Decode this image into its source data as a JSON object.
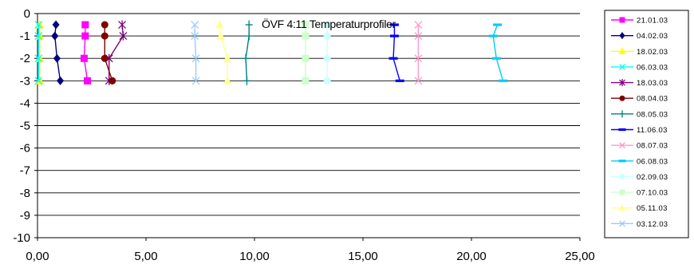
{
  "chart_data": {
    "type": "line",
    "title": "ÖVF 4:11 Temperaturprofiler",
    "xlabel": "",
    "ylabel": "",
    "xlim": [
      0,
      25
    ],
    "ylim": [
      -10,
      0
    ],
    "x_ticks": [
      "0,00",
      "5,00",
      "10,00",
      "15,00",
      "20,00",
      "25,00"
    ],
    "y_ticks": [
      "0",
      "-1",
      "-2",
      "-3",
      "-4",
      "-5",
      "-6",
      "-7",
      "-8",
      "-9",
      "-10"
    ],
    "grid": true,
    "legend_position": "right",
    "depths": [
      -0.5,
      -1,
      -2,
      -3
    ],
    "series": [
      {
        "name": "21.01.03",
        "color": "#FF00FF",
        "marker": "square",
        "x": [
          2.2,
          2.2,
          2.15,
          2.3
        ]
      },
      {
        "name": "04.02.03",
        "color": "#000080",
        "marker": "diamond",
        "x": [
          0.85,
          0.8,
          0.9,
          1.05
        ]
      },
      {
        "name": "18.02.03",
        "color": "#FFFF00",
        "marker": "triangle",
        "x": [
          0.1,
          0.1,
          0.1,
          0.1
        ]
      },
      {
        "name": "06.03.03",
        "color": "#00FFFF",
        "marker": "x",
        "x": [
          0.05,
          0.05,
          0.05,
          0.05
        ]
      },
      {
        "name": "18.03.03",
        "color": "#800080",
        "marker": "star",
        "x": [
          3.9,
          3.95,
          3.3,
          3.3
        ]
      },
      {
        "name": "08.04.03",
        "color": "#800000",
        "marker": "circle",
        "x": [
          3.1,
          3.1,
          3.1,
          3.45
        ]
      },
      {
        "name": "08.05.03",
        "color": "#008080",
        "marker": "plus",
        "x": [
          9.75,
          9.75,
          9.6,
          9.65
        ]
      },
      {
        "name": "11.06.03",
        "color": "#0000FF",
        "marker": "dash",
        "x": [
          16.45,
          16.45,
          16.4,
          16.7
        ]
      },
      {
        "name": "08.07.03",
        "color": "#FF99CC",
        "marker": "x",
        "x": [
          17.55,
          17.55,
          17.55,
          17.55
        ]
      },
      {
        "name": "06.08.03",
        "color": "#00CCFF",
        "marker": "dash",
        "x": [
          21.2,
          21.0,
          21.15,
          21.45
        ]
      },
      {
        "name": "02.09.03",
        "color": "#CCFFFF",
        "marker": "circle",
        "x": [
          13.35,
          13.35,
          13.35,
          13.35
        ]
      },
      {
        "name": "07.10.03",
        "color": "#CCFFCC",
        "marker": "square",
        "x": [
          12.35,
          12.35,
          12.35,
          12.35
        ]
      },
      {
        "name": "05.11.03",
        "color": "#FFFF99",
        "marker": "triangle",
        "x": [
          8.4,
          8.45,
          8.75,
          8.75
        ]
      },
      {
        "name": "03.12.03",
        "color": "#99CCFF",
        "marker": "x",
        "x": [
          7.25,
          7.25,
          7.3,
          7.3
        ]
      }
    ]
  }
}
